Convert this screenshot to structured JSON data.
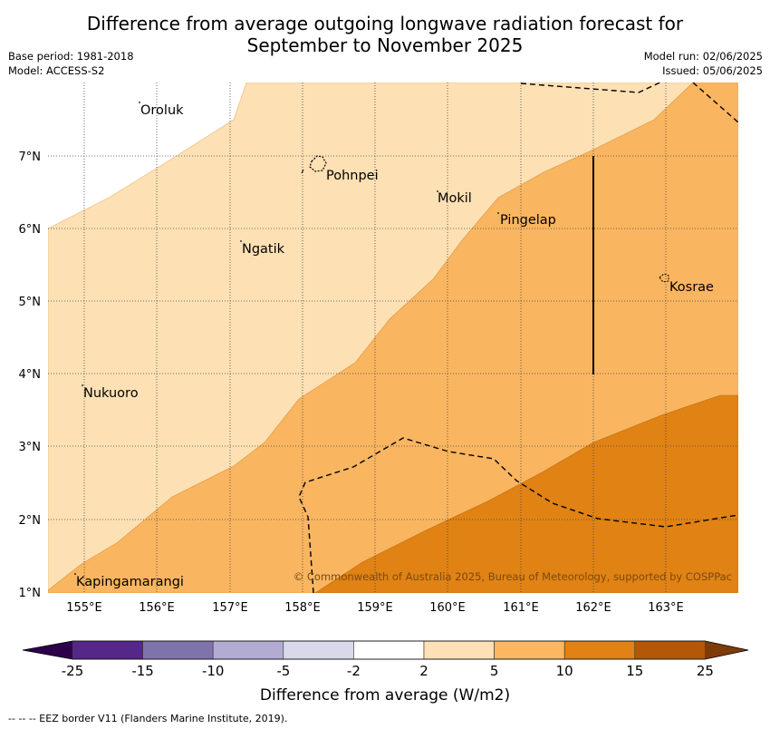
{
  "header": {
    "title_line1": "Difference from average outgoing longwave radiation forecast for",
    "title_line2": "September to November 2025",
    "base_period": "Base period: 1981-2018",
    "model": "Model: ACCESS-S2",
    "model_run": "Model run: 02/06/2025",
    "issued": "Issued: 05/06/2025"
  },
  "map": {
    "lat_labels": [
      "7°N",
      "6°N",
      "5°N",
      "4°N",
      "3°N",
      "2°N",
      "1°N"
    ],
    "lon_labels": [
      "155°E",
      "156°E",
      "157°E",
      "158°E",
      "159°E",
      "160°E",
      "161°E",
      "162°E",
      "163°E"
    ],
    "places": [
      "Oroluk",
      "Pohnpei",
      "Mokil",
      "Pingelap",
      "Ngatik",
      "Kosrae",
      "Nukuoro",
      "Kapingamarangi"
    ],
    "copyright": "© Commonwealth of Australia 2025, Bureau of Meteorology, supported by COSPPac",
    "fill_colors": {
      "2_to_5": "#fde0b4",
      "5_to_10": "#f9b560",
      "10_to_15": "#e08214",
      "15_to_25": "#b35806"
    }
  },
  "colorbar": {
    "tick_labels": [
      "-25",
      "-15",
      "-10",
      "-5",
      "-2",
      "2",
      "5",
      "10",
      "15",
      "25"
    ],
    "colors": [
      "#2d004b",
      "#542788",
      "#8073ac",
      "#b2abd2",
      "#d8daeb",
      "#ffffff",
      "#fee0b6",
      "#fbb761",
      "#e08214",
      "#b35806",
      "#7f3b08"
    ],
    "label": "Difference from average (W/m2)"
  },
  "footnote": "--  --  -- EEZ border V11 (Flanders Marine Institute, 2019)."
}
